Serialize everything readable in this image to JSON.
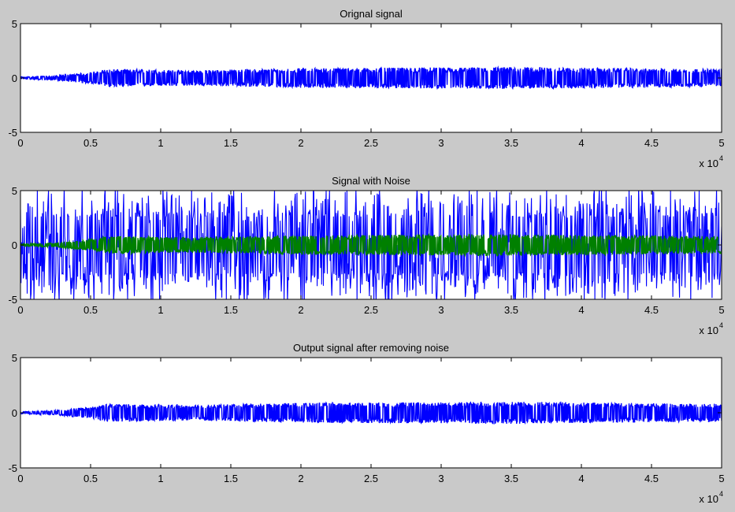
{
  "chart_data": [
    {
      "type": "line",
      "title": "Orignal signal",
      "xlim": [
        0,
        50000
      ],
      "ylim": [
        -5,
        5
      ],
      "x_ticks": [
        "0",
        "0.5",
        "1",
        "1.5",
        "2",
        "2.5",
        "3",
        "3.5",
        "4",
        "4.5",
        "5"
      ],
      "y_ticks": [
        "5",
        "0",
        "-5"
      ],
      "x_multiplier": "x 10",
      "x_multiplier_exp": "4",
      "series": [
        {
          "color": "#0000ff",
          "envelope": {
            "x": [
              0,
              2500,
              5500,
              6000,
              8000,
              12000,
              20000,
              35000,
              50000
            ],
            "amplitude": [
              0.1,
              0.2,
              0.6,
              0.8,
              0.8,
              0.7,
              0.9,
              1.0,
              0.8
            ]
          }
        }
      ]
    },
    {
      "type": "line",
      "title": "Signal with Noise",
      "xlim": [
        0,
        50000
      ],
      "ylim": [
        -5,
        5
      ],
      "x_ticks": [
        "0",
        "0.5",
        "1",
        "1.5",
        "2",
        "2.5",
        "3",
        "3.5",
        "4",
        "4.5",
        "5"
      ],
      "y_ticks": [
        "5",
        "0",
        "-5"
      ],
      "x_multiplier": "x 10",
      "x_multiplier_exp": "4",
      "series": [
        {
          "color": "#0000ff",
          "envelope": {
            "x": [
              0,
              50000
            ],
            "amplitude": [
              5,
              5
            ]
          }
        },
        {
          "color": "#008000",
          "envelope": {
            "x": [
              0,
              2500,
              5500,
              6000,
              8000,
              12000,
              20000,
              35000,
              50000
            ],
            "amplitude": [
              0.1,
              0.2,
              0.6,
              0.8,
              0.8,
              0.7,
              0.9,
              1.0,
              0.8
            ]
          }
        }
      ]
    },
    {
      "type": "line",
      "title": "Output signal after removing  noise",
      "xlim": [
        0,
        50000
      ],
      "ylim": [
        -5,
        5
      ],
      "x_ticks": [
        "0",
        "0.5",
        "1",
        "1.5",
        "2",
        "2.5",
        "3",
        "3.5",
        "4",
        "4.5",
        "5"
      ],
      "y_ticks": [
        "5",
        "0",
        "-5"
      ],
      "x_multiplier": "x 10",
      "x_multiplier_exp": "4",
      "series": [
        {
          "color": "#0000ff",
          "envelope": {
            "x": [
              0,
              2500,
              5500,
              6000,
              8000,
              12000,
              20000,
              35000,
              50000
            ],
            "amplitude": [
              0.1,
              0.2,
              0.6,
              0.8,
              0.8,
              0.7,
              0.9,
              1.0,
              0.8
            ]
          }
        }
      ]
    }
  ]
}
